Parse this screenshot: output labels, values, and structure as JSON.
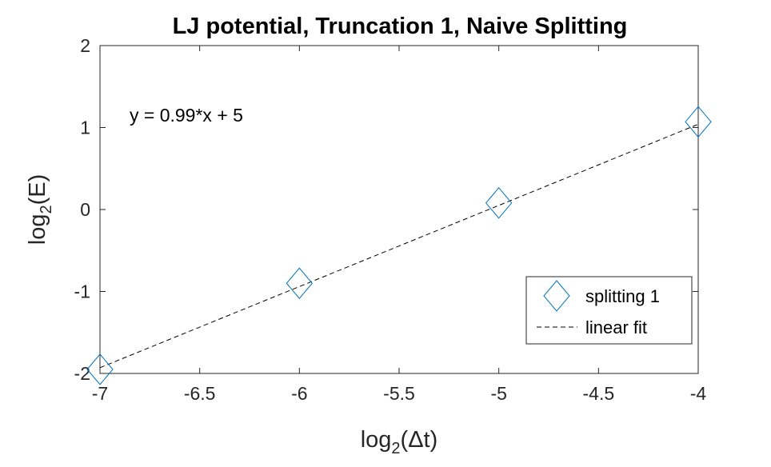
{
  "chart_data": {
    "type": "scatter",
    "title": "LJ potential, Truncation 1, Naive Splitting",
    "xlabel": {
      "prefix": "log",
      "sub": "2",
      "suffix": "(Δt)"
    },
    "ylabel": {
      "prefix": "log",
      "sub": "2",
      "suffix": "(E)"
    },
    "xlim": [
      -7,
      -4
    ],
    "ylim": [
      -2,
      2
    ],
    "xticks": [
      -7,
      -6.5,
      -6,
      -5.5,
      -5,
      -4.5,
      -4
    ],
    "xtick_labels": [
      "-7",
      "-6.5",
      "-6",
      "-5.5",
      "-5",
      "-4.5",
      "-4"
    ],
    "yticks": [
      -2,
      -1,
      0,
      1,
      2
    ],
    "ytick_labels": [
      "-2",
      "-1",
      "0",
      "1",
      "2"
    ],
    "grid": false,
    "series": [
      {
        "name": "splitting 1",
        "kind": "markers",
        "marker": "diamond",
        "color": "#0072BD",
        "x": [
          -7,
          -6,
          -5,
          -4
        ],
        "y": [
          -1.95,
          -0.9,
          0.08,
          1.07
        ]
      },
      {
        "name": "linear fit",
        "kind": "line",
        "style": "dashed",
        "color": "#000000",
        "x": [
          -7,
          -4
        ],
        "y": [
          -1.93,
          1.04
        ]
      }
    ],
    "annotations": [
      {
        "text": "y = 0.99*x + 5"
      }
    ],
    "legend": {
      "position": "bottom-right"
    }
  }
}
